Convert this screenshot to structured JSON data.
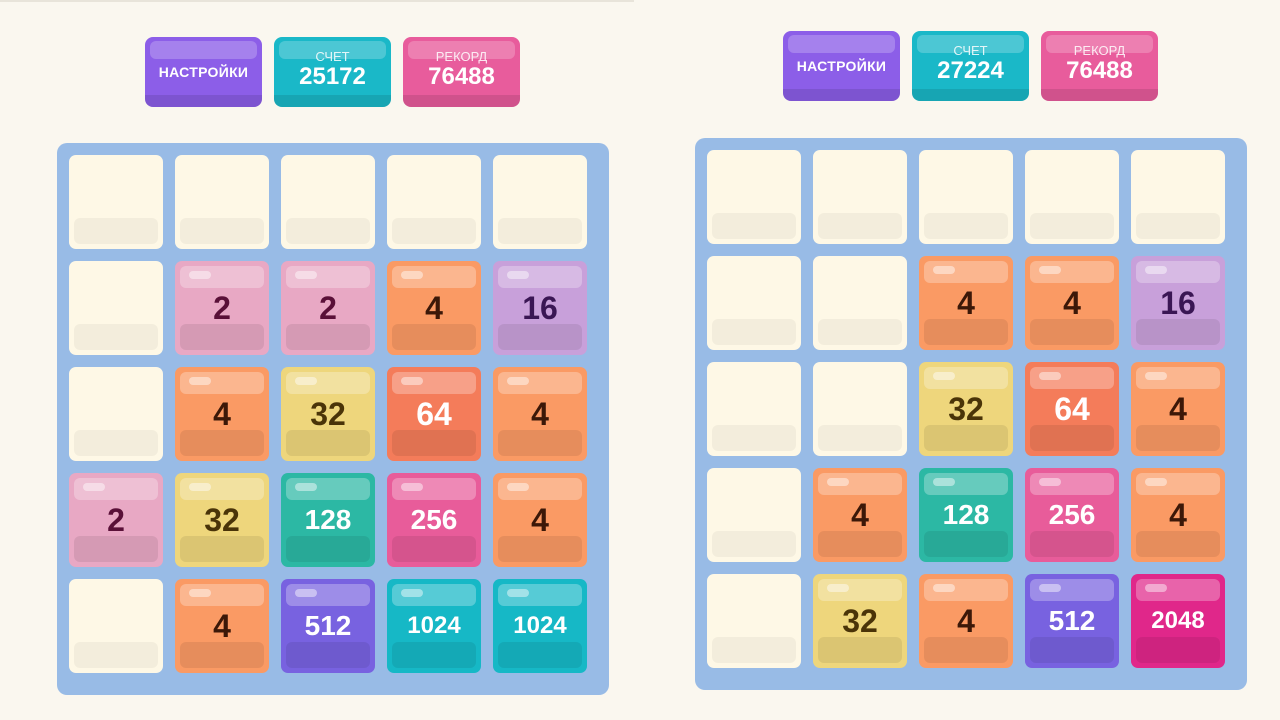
{
  "games": [
    {
      "header": {
        "settings_label": "НАСТРОЙКИ",
        "score_label": "СЧЕТ",
        "score_value": "25172",
        "best_label": "РЕКОРД",
        "best_value": "76488"
      },
      "board": [
        [
          0,
          0,
          0,
          0,
          0
        ],
        [
          0,
          2,
          2,
          4,
          16
        ],
        [
          0,
          4,
          32,
          64,
          4
        ],
        [
          2,
          32,
          128,
          256,
          4
        ],
        [
          0,
          4,
          512,
          1024,
          1024
        ]
      ]
    },
    {
      "header": {
        "settings_label": "НАСТРОЙКИ",
        "score_label": "СЧЕТ",
        "score_value": "27224",
        "best_label": "РЕКОРД",
        "best_value": "76488"
      },
      "board": [
        [
          0,
          0,
          0,
          0,
          0
        ],
        [
          0,
          0,
          4,
          4,
          16
        ],
        [
          0,
          0,
          32,
          64,
          4
        ],
        [
          0,
          4,
          128,
          256,
          4
        ],
        [
          0,
          32,
          4,
          512,
          2048
        ]
      ]
    }
  ],
  "colors": {
    "background": "#faf7ef",
    "board": "#98bbe6",
    "settings": "#8c5ee8",
    "score": "#1ab8c8",
    "best": "#e85c9c"
  }
}
